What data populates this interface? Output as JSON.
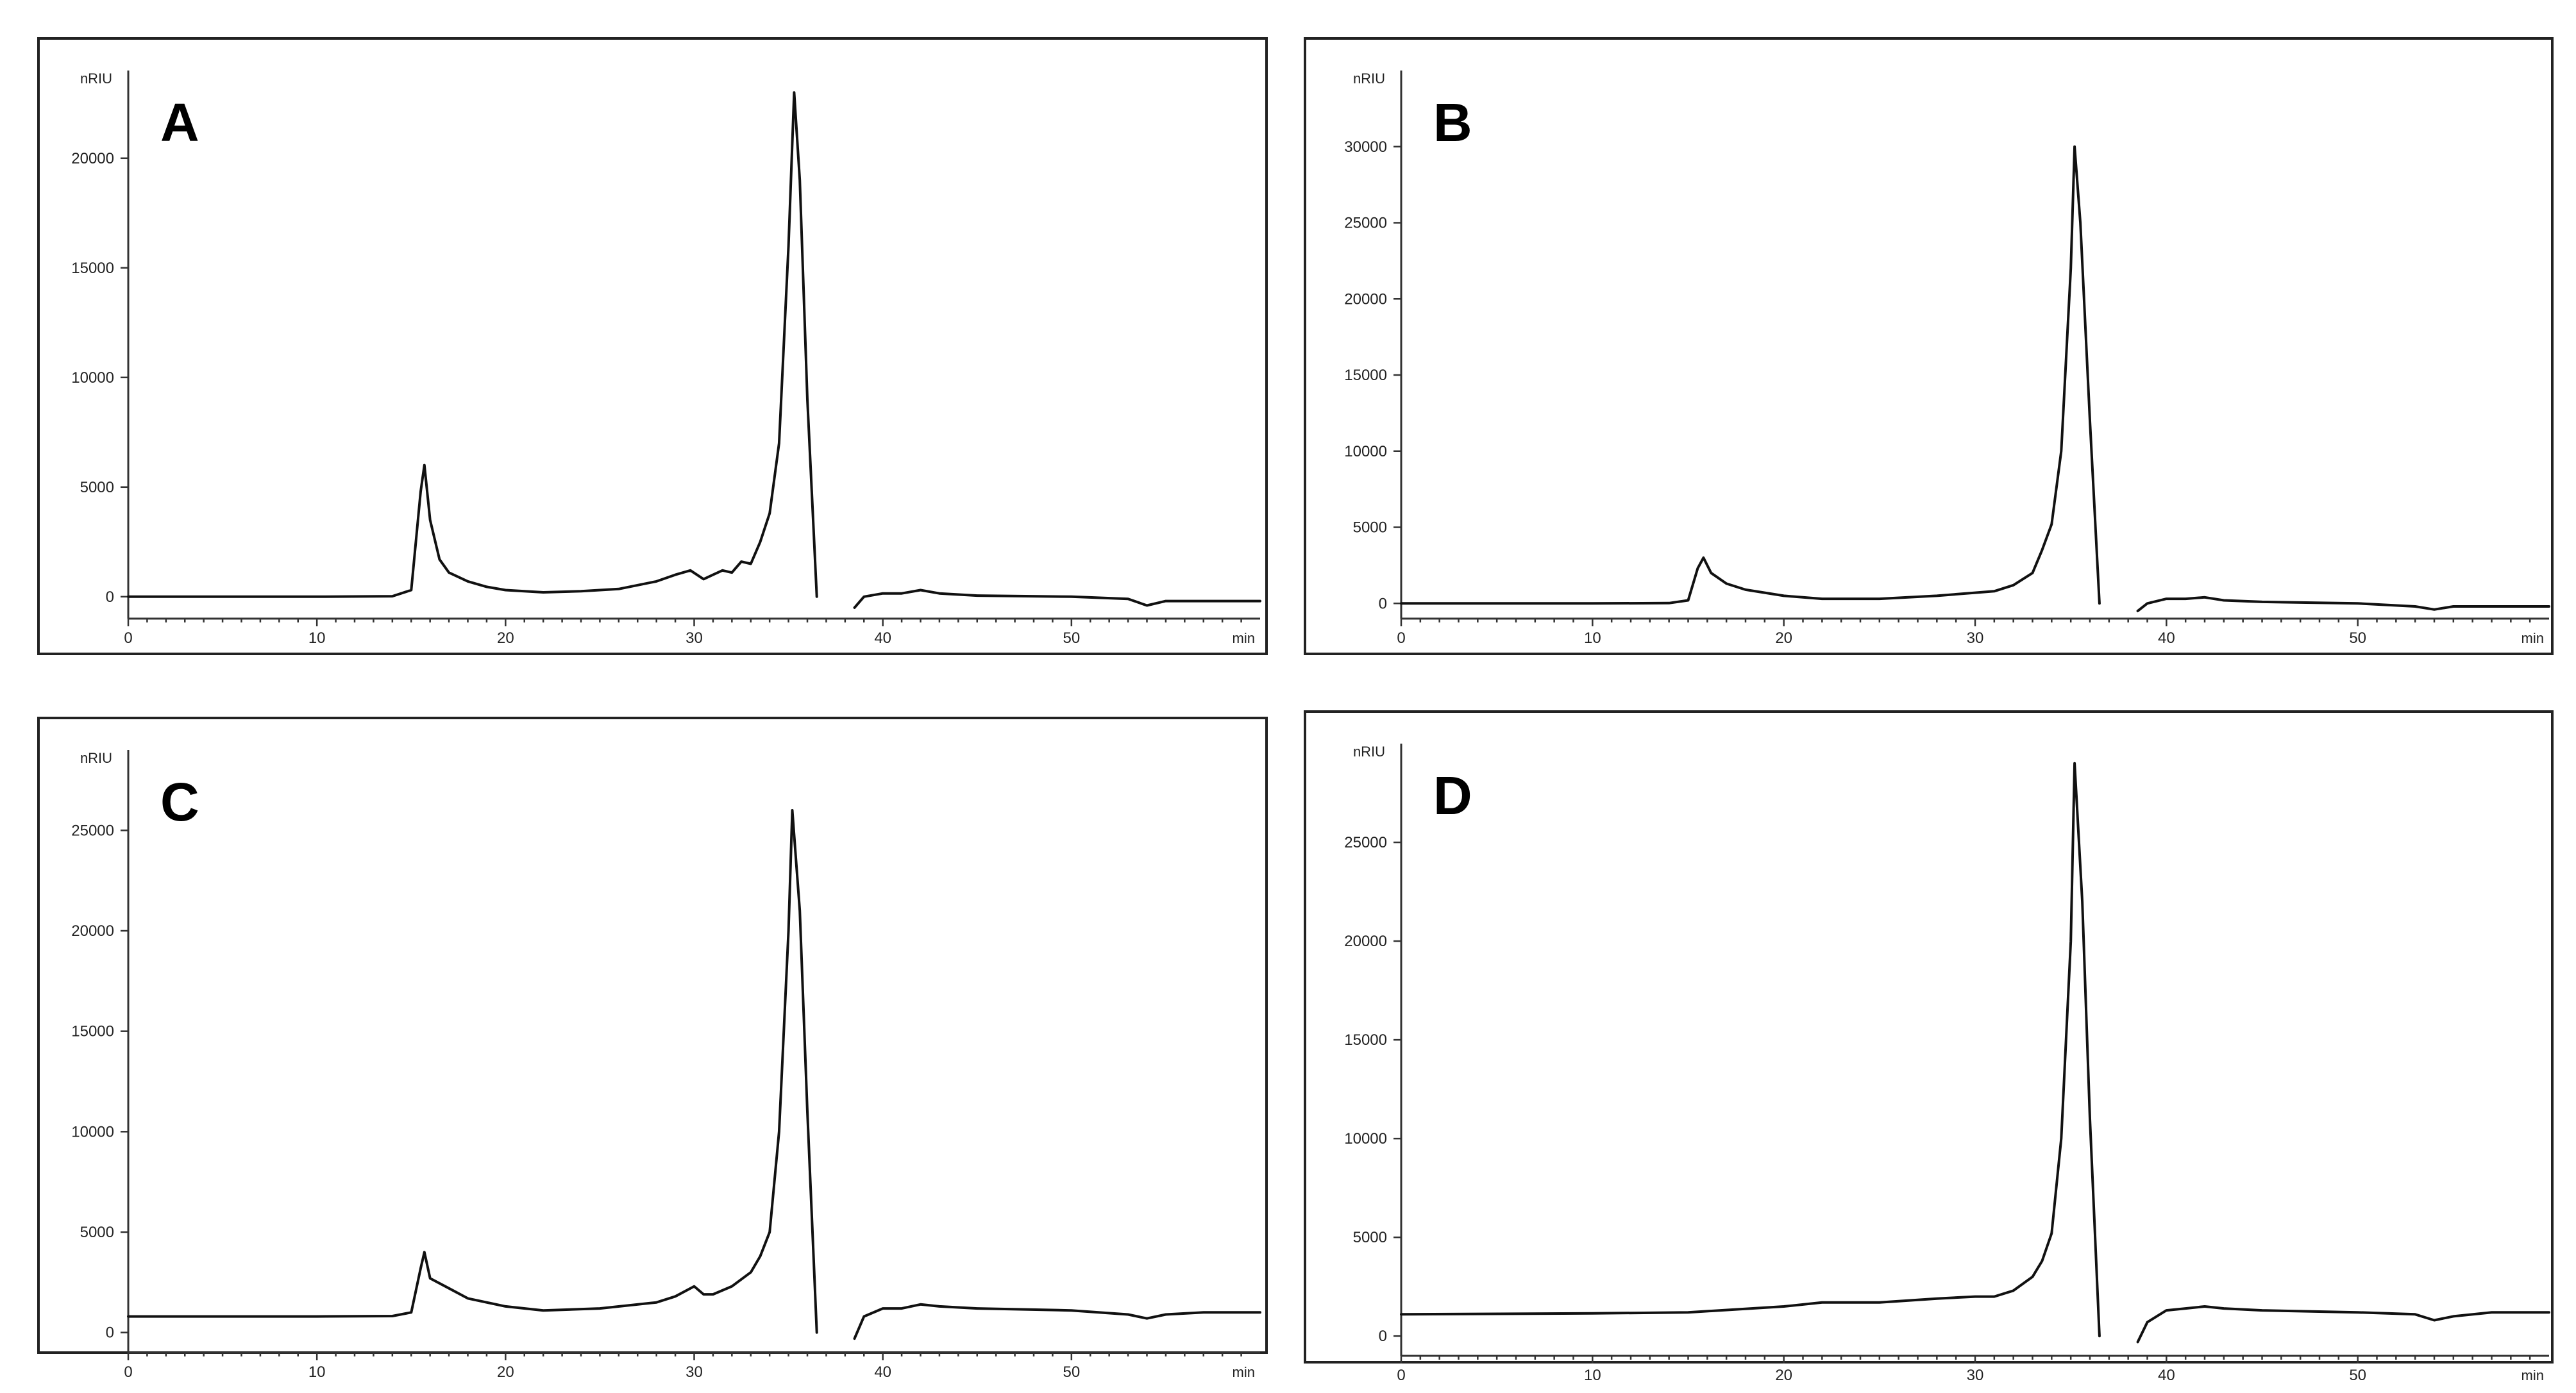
{
  "chart_data": [
    {
      "type": "line",
      "panel": "A",
      "ylabel": "nRIU",
      "xlabel": "min",
      "xlim": [
        0,
        60
      ],
      "ylim": [
        -1000,
        24000
      ],
      "xticks": [
        0,
        10,
        20,
        30,
        40,
        50
      ],
      "yticks": [
        0,
        5000,
        10000,
        15000,
        20000
      ],
      "grid": false,
      "series": [
        {
          "segments": [
            [
              [
                0,
                0
              ],
              [
                10,
                0
              ],
              [
                14,
                20
              ],
              [
                15,
                300
              ],
              [
                15.5,
                4800
              ],
              [
                15.7,
                6000
              ],
              [
                16,
                3500
              ],
              [
                16.5,
                1700
              ],
              [
                17,
                1100
              ],
              [
                18,
                700
              ],
              [
                19,
                450
              ],
              [
                20,
                300
              ],
              [
                22,
                200
              ],
              [
                24,
                250
              ],
              [
                26,
                350
              ],
              [
                28,
                700
              ],
              [
                29,
                1000
              ],
              [
                29.8,
                1200
              ],
              [
                30.5,
                800
              ],
              [
                31,
                1000
              ],
              [
                31.5,
                1200
              ],
              [
                32,
                1100
              ],
              [
                32.5,
                1600
              ],
              [
                33,
                1500
              ],
              [
                33.5,
                2500
              ],
              [
                34,
                3800
              ],
              [
                34.5,
                7000
              ],
              [
                35,
                16000
              ],
              [
                35.3,
                23000
              ],
              [
                35.6,
                19000
              ],
              [
                36,
                9000
              ],
              [
                36.5,
                0
              ]
            ],
            [
              [
                38.5,
                -500
              ],
              [
                39,
                0
              ],
              [
                40,
                150
              ],
              [
                41,
                150
              ],
              [
                42,
                300
              ],
              [
                43,
                150
              ],
              [
                45,
                50
              ],
              [
                50,
                0
              ],
              [
                53,
                -100
              ],
              [
                54,
                -400
              ],
              [
                55,
                -200
              ],
              [
                60,
                -200
              ]
            ]
          ]
        }
      ]
    },
    {
      "type": "line",
      "panel": "B",
      "ylabel": "nRIU",
      "xlabel": "min",
      "xlim": [
        0,
        60
      ],
      "ylim": [
        -1000,
        35000
      ],
      "xticks": [
        0,
        10,
        20,
        30,
        40,
        50
      ],
      "yticks": [
        0,
        5000,
        10000,
        15000,
        20000,
        25000,
        30000
      ],
      "grid": false,
      "series": [
        {
          "segments": [
            [
              [
                0,
                0
              ],
              [
                10,
                0
              ],
              [
                14,
                20
              ],
              [
                15,
                200
              ],
              [
                15.5,
                2300
              ],
              [
                15.8,
                3000
              ],
              [
                16.2,
                2000
              ],
              [
                17,
                1300
              ],
              [
                18,
                900
              ],
              [
                20,
                500
              ],
              [
                22,
                300
              ],
              [
                25,
                300
              ],
              [
                28,
                500
              ],
              [
                30,
                700
              ],
              [
                31,
                800
              ],
              [
                32,
                1200
              ],
              [
                33,
                2000
              ],
              [
                33.5,
                3500
              ],
              [
                34,
                5200
              ],
              [
                34.5,
                10000
              ],
              [
                35,
                22000
              ],
              [
                35.2,
                30000
              ],
              [
                35.5,
                25000
              ],
              [
                36,
                12000
              ],
              [
                36.5,
                0
              ]
            ],
            [
              [
                38.5,
                -500
              ],
              [
                39,
                0
              ],
              [
                40,
                300
              ],
              [
                41,
                300
              ],
              [
                42,
                400
              ],
              [
                43,
                200
              ],
              [
                45,
                100
              ],
              [
                50,
                0
              ],
              [
                53,
                -200
              ],
              [
                54,
                -400
              ],
              [
                55,
                -200
              ],
              [
                60,
                -200
              ]
            ]
          ]
        }
      ]
    },
    {
      "type": "line",
      "panel": "C",
      "ylabel": "nRIU",
      "xlabel": "min",
      "xlim": [
        0,
        60
      ],
      "ylim": [
        -1000,
        29000
      ],
      "xticks": [
        0,
        10,
        20,
        30,
        40,
        50
      ],
      "yticks": [
        0,
        5000,
        10000,
        15000,
        20000,
        25000
      ],
      "grid": false,
      "series": [
        {
          "segments": [
            [
              [
                0,
                800
              ],
              [
                10,
                800
              ],
              [
                14,
                820
              ],
              [
                15,
                1000
              ],
              [
                15.5,
                3200
              ],
              [
                15.7,
                4000
              ],
              [
                16,
                2700
              ],
              [
                17,
                2200
              ],
              [
                18,
                1700
              ],
              [
                20,
                1300
              ],
              [
                22,
                1100
              ],
              [
                25,
                1200
              ],
              [
                28,
                1500
              ],
              [
                29,
                1800
              ],
              [
                30,
                2300
              ],
              [
                30.5,
                1900
              ],
              [
                31,
                1900
              ],
              [
                32,
                2300
              ],
              [
                33,
                3000
              ],
              [
                33.5,
                3800
              ],
              [
                34,
                5000
              ],
              [
                34.5,
                10000
              ],
              [
                35,
                20000
              ],
              [
                35.2,
                26000
              ],
              [
                35.6,
                21000
              ],
              [
                36,
                11000
              ],
              [
                36.5,
                0
              ]
            ],
            [
              [
                38.5,
                -300
              ],
              [
                39,
                800
              ],
              [
                40,
                1200
              ],
              [
                41,
                1200
              ],
              [
                42,
                1400
              ],
              [
                43,
                1300
              ],
              [
                45,
                1200
              ],
              [
                50,
                1100
              ],
              [
                53,
                900
              ],
              [
                54,
                700
              ],
              [
                55,
                900
              ],
              [
                57,
                1000
              ],
              [
                60,
                1000
              ]
            ]
          ]
        }
      ]
    },
    {
      "type": "line",
      "panel": "D",
      "ylabel": "nRIU",
      "xlabel": "min",
      "xlim": [
        0,
        60
      ],
      "ylim": [
        -1000,
        30000
      ],
      "xticks": [
        0,
        10,
        20,
        30,
        40,
        50
      ],
      "yticks": [
        0,
        5000,
        10000,
        15000,
        20000,
        25000
      ],
      "grid": false,
      "series": [
        {
          "segments": [
            [
              [
                0,
                1100
              ],
              [
                10,
                1150
              ],
              [
                15,
                1200
              ],
              [
                20,
                1500
              ],
              [
                22,
                1700
              ],
              [
                25,
                1700
              ],
              [
                28,
                1900
              ],
              [
                30,
                2000
              ],
              [
                31,
                2000
              ],
              [
                32,
                2300
              ],
              [
                33,
                3000
              ],
              [
                33.5,
                3800
              ],
              [
                34,
                5200
              ],
              [
                34.5,
                10000
              ],
              [
                35,
                20000
              ],
              [
                35.2,
                29000
              ],
              [
                35.6,
                22000
              ],
              [
                36,
                11000
              ],
              [
                36.5,
                0
              ]
            ],
            [
              [
                38.5,
                -300
              ],
              [
                39,
                700
              ],
              [
                40,
                1300
              ],
              [
                41,
                1400
              ],
              [
                42,
                1500
              ],
              [
                43,
                1400
              ],
              [
                45,
                1300
              ],
              [
                50,
                1200
              ],
              [
                53,
                1100
              ],
              [
                54,
                800
              ],
              [
                55,
                1000
              ],
              [
                57,
                1200
              ],
              [
                60,
                1200
              ]
            ]
          ]
        }
      ]
    }
  ]
}
